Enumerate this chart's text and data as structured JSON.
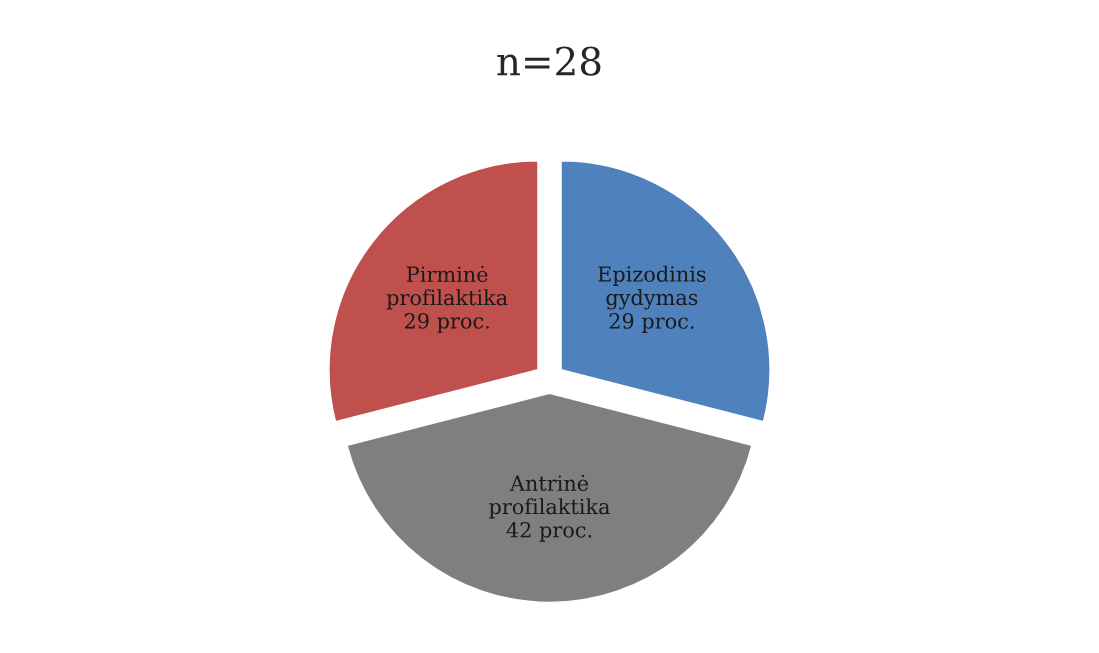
{
  "chart_data": {
    "type": "pie",
    "title": "n=28",
    "categories": [
      "Epizodinis gydymas",
      "Antrinė profilaktika",
      "Pirminė profilaktika"
    ],
    "values": [
      29,
      42,
      29
    ],
    "value_labels": [
      "29 proc.",
      "42 proc.",
      "29 proc."
    ],
    "colors": [
      "#4f81bd",
      "#7f7f7f",
      "#c0504d"
    ],
    "legend": false
  }
}
